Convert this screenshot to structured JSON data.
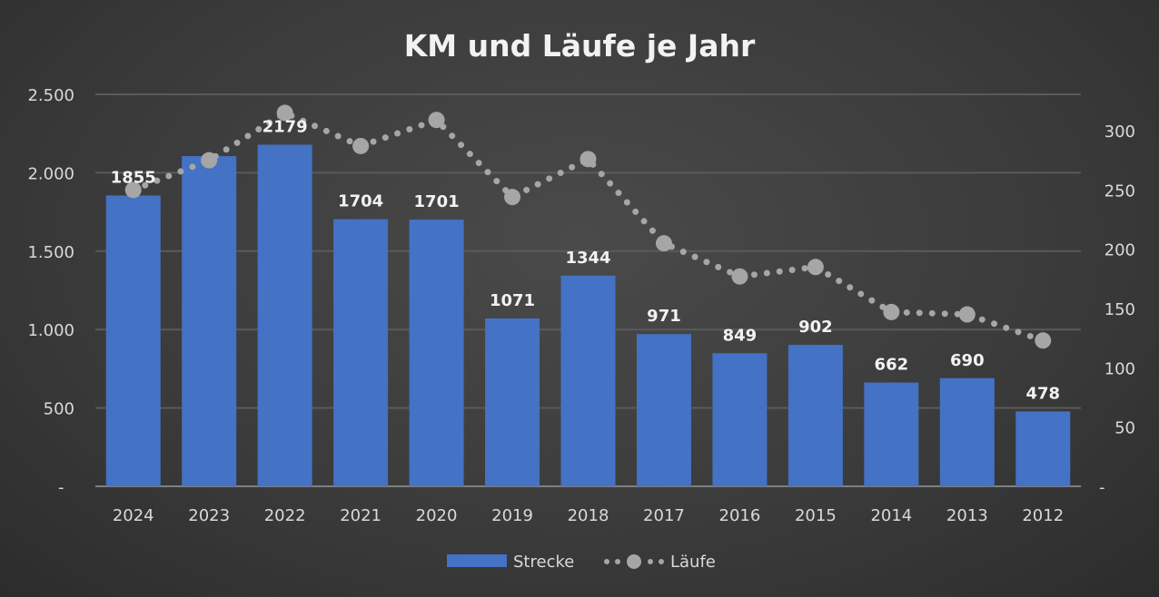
{
  "chart_data": {
    "type": "bar+line",
    "title": "KM und Läufe je Jahr",
    "categories": [
      "2024",
      "2023",
      "2022",
      "2021",
      "2020",
      "2019",
      "2018",
      "2017",
      "2016",
      "2015",
      "2014",
      "2013",
      "2012"
    ],
    "series": [
      {
        "name": "Strecke",
        "type": "bar",
        "axis": "left",
        "color": "#4472c4",
        "values": [
          1855,
          2106,
          2179,
          1704,
          1701,
          1071,
          1344,
          971,
          849,
          902,
          662,
          690,
          478
        ],
        "labels": [
          "1855",
          "",
          "2179",
          "1704",
          "1701",
          "1071",
          "1344",
          "971",
          "849",
          "902",
          "662",
          "690",
          "478"
        ]
      },
      {
        "name": "Läufe",
        "type": "line",
        "axis": "right",
        "color": "#a6a6a6",
        "style": "dotted",
        "values": [
          250,
          275,
          315,
          287,
          309,
          244,
          276,
          205,
          177,
          185,
          147,
          145,
          123
        ]
      }
    ],
    "y_left": {
      "range": [
        0,
        2500
      ],
      "ticks": [
        "-",
        "500",
        "1.000",
        "1.500",
        "2.000",
        "2.500"
      ]
    },
    "y_right": {
      "range": [
        0,
        330
      ],
      "ticks": [
        "-",
        "50",
        "100",
        "150",
        "200",
        "250",
        "300"
      ]
    },
    "grid": true,
    "legend": "bottom"
  }
}
